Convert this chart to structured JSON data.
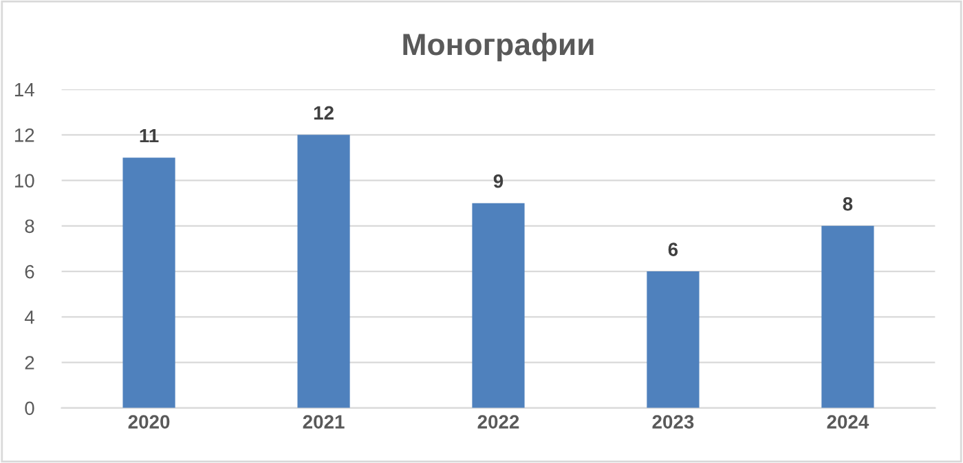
{
  "chart_data": {
    "type": "bar",
    "title": "Монографии",
    "categories": [
      "2020",
      "2021",
      "2022",
      "2023",
      "2024"
    ],
    "values": [
      11,
      12,
      9,
      6,
      8
    ],
    "color": "#4f81bd",
    "ylim": [
      0,
      14
    ],
    "yticks": [
      0,
      2,
      4,
      6,
      8,
      10,
      12,
      14
    ],
    "grid": "y",
    "data_labels": true
  }
}
